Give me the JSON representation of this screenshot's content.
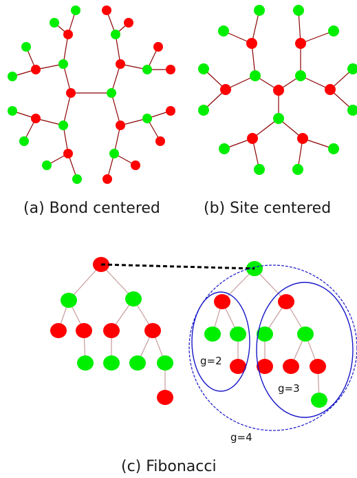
{
  "captions": {
    "a": "(a) Bond centered",
    "b": "(b) Site centered",
    "c": "(c) Fibonacci"
  },
  "group_labels": {
    "g2": "g=2",
    "g3": "g=3",
    "g4": "g=4"
  },
  "colors": {
    "red_node": "#ff0000",
    "green_node": "#00ee00",
    "edge_dark": "#8b0000",
    "edge_light": "#c89a9a",
    "group_outline": "#1515c8",
    "dashed_link": "#000000"
  },
  "legend_nodes": [
    "red-node",
    "green-node"
  ]
}
